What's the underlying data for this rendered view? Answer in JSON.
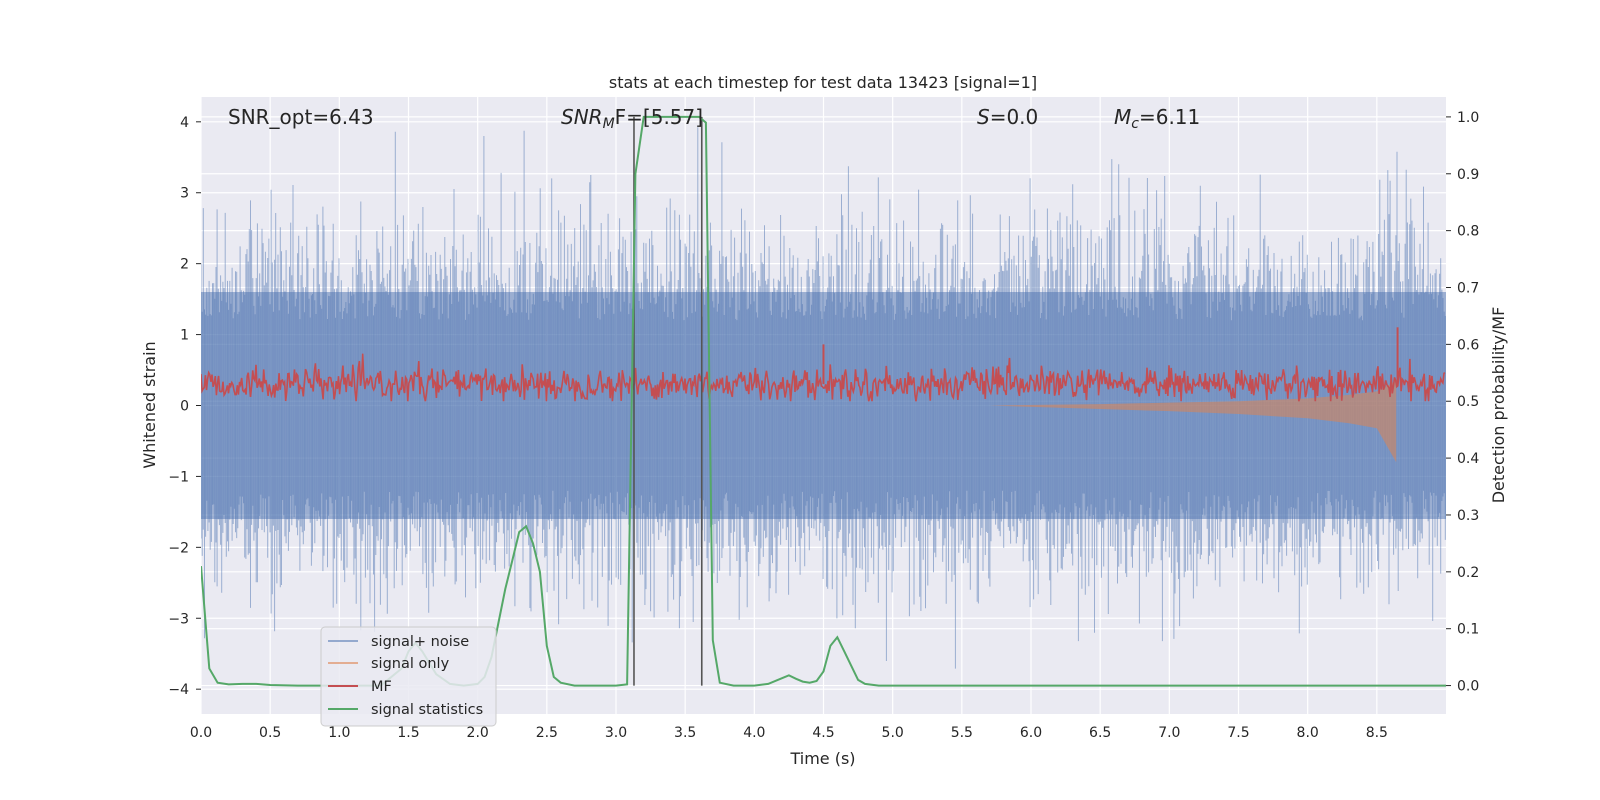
{
  "chart_data": {
    "type": "line",
    "title": "stats at each timestep for test data 13423 [signal=1]",
    "xlabel": "Time (s)",
    "ylabel_left": "Whitened strain",
    "ylabel_right": "Detection probability/MF",
    "xlim": [
      0,
      9
    ],
    "ylim_left": [
      -4.35,
      4.35
    ],
    "ylim_right": [
      -0.05,
      1.035
    ],
    "x_ticks": [
      "0.0",
      "0.5",
      "1.0",
      "1.5",
      "2.0",
      "2.5",
      "3.0",
      "3.5",
      "4.0",
      "4.5",
      "5.0",
      "5.5",
      "6.0",
      "6.5",
      "7.0",
      "7.5",
      "8.0",
      "8.5"
    ],
    "y_ticks_left": [
      "−4",
      "−3",
      "−2",
      "−1",
      "0",
      "1",
      "2",
      "3",
      "4"
    ],
    "y_ticks_right": [
      "0.0",
      "0.1",
      "0.2",
      "0.3",
      "0.4",
      "0.5",
      "0.6",
      "0.7",
      "0.8",
      "0.9",
      "1.0"
    ],
    "grid": true,
    "legend_position": "bottom-left",
    "annotations": {
      "snr_opt": "SNR_opt=6.43",
      "snr_mf_base": "SNR",
      "snr_mf_sub": "M",
      "snr_mf_rest": "F=[5.57]",
      "s_label": "S",
      "s_value": "=0.0",
      "mc_label": "M",
      "mc_sub": "c",
      "mc_value": "=6.11"
    },
    "vlines_x": [
      3.13,
      3.62
    ],
    "series": [
      {
        "name": "signal+ noise",
        "color": "#4c72b0",
        "description_range": [
          -4.0,
          4.0
        ],
        "typical_band": [
          -1.6,
          1.6
        ]
      },
      {
        "name": "signal only",
        "color": "#dd8452",
        "envelope": {
          "x": [
            5.7,
            6.5,
            7.0,
            7.5,
            8.0,
            8.3,
            8.5,
            8.64
          ],
          "upper": [
            0.0,
            0.02,
            0.04,
            0.06,
            0.1,
            0.15,
            0.2,
            0.35
          ],
          "lower": [
            0.0,
            -0.05,
            -0.08,
            -0.12,
            -0.18,
            -0.25,
            -0.32,
            -0.8
          ]
        }
      },
      {
        "name": "MF",
        "color": "#c44e52",
        "axis": "right",
        "typical_band": [
          0.51,
          0.55
        ],
        "peaks": [
          {
            "x": 8.65,
            "y": 0.63
          },
          {
            "x": 4.5,
            "y": 0.6
          }
        ]
      },
      {
        "name": "signal statistics",
        "color": "#55a868",
        "axis": "right",
        "x": [
          0.0,
          0.06,
          0.12,
          0.2,
          0.3,
          0.4,
          0.5,
          0.7,
          1.0,
          1.3,
          1.45,
          1.5,
          1.55,
          1.6,
          1.7,
          1.8,
          1.9,
          2.0,
          2.05,
          2.1,
          2.15,
          2.2,
          2.25,
          2.3,
          2.35,
          2.4,
          2.45,
          2.5,
          2.55,
          2.6,
          2.7,
          2.8,
          3.0,
          3.08,
          3.14,
          3.2,
          3.3,
          3.4,
          3.5,
          3.6,
          3.65,
          3.7,
          3.75,
          3.85,
          4.0,
          4.1,
          4.2,
          4.25,
          4.3,
          4.35,
          4.4,
          4.45,
          4.5,
          4.55,
          4.6,
          4.65,
          4.7,
          4.75,
          4.8,
          4.9,
          5.5,
          6.5,
          7.5,
          8.5,
          9.0
        ],
        "y": [
          0.21,
          0.03,
          0.005,
          0.002,
          0.003,
          0.003,
          0.001,
          0.0,
          0.0,
          0.0,
          0.03,
          0.06,
          0.075,
          0.06,
          0.02,
          0.003,
          0.0,
          0.003,
          0.015,
          0.05,
          0.11,
          0.17,
          0.22,
          0.27,
          0.28,
          0.25,
          0.2,
          0.07,
          0.015,
          0.005,
          0.0,
          0.0,
          0.0,
          0.002,
          0.9,
          1.0,
          1.0,
          1.0,
          1.0,
          1.0,
          0.99,
          0.08,
          0.005,
          0.0,
          0.0,
          0.003,
          0.013,
          0.018,
          0.012,
          0.007,
          0.005,
          0.008,
          0.025,
          0.07,
          0.085,
          0.06,
          0.035,
          0.01,
          0.003,
          0.0,
          0.0,
          0.0,
          0.0,
          0.0,
          0.0
        ]
      }
    ]
  }
}
